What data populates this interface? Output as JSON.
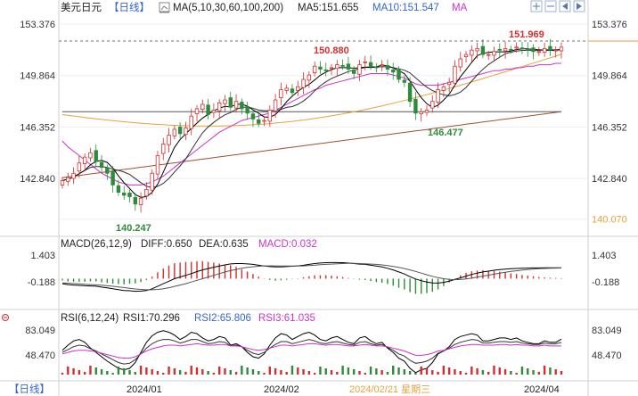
{
  "header": {
    "symbol": "美元日元",
    "period": "日线",
    "ma_label": "MA(5,10,30,60,100,200)",
    "ma5": "MA5:151.655",
    "ma10": "MA10:151.547",
    "ma_extra": "MA"
  },
  "macd_header": {
    "title": "MACD(26,12,9)",
    "diff": "DIFF:0.650",
    "dea": "DEA:0.635",
    "macd": "MACD:0.032"
  },
  "rsi_header": {
    "title": "RSI(6,12,24)",
    "rsi1": "RSI1:70.296",
    "rsi2": "RSI2:65.806",
    "rsi3": "RSI3:61.035"
  },
  "footer": {
    "period": "日线",
    "dates": [
      "2024/01",
      "2024/02",
      "2024/02/21 星期三",
      "2024/04"
    ]
  },
  "colors": {
    "up": "#d32f2f",
    "down": "#2e8b3a",
    "ma5": "#000000",
    "ma10": "#333333",
    "ma30": "#cc33cc",
    "ma60": "#e6a23c",
    "ma100": "#555555",
    "ma200": "#a0522d",
    "axis_orange": "#e6a23c"
  },
  "chart_data": [
    {
      "type": "candlestick",
      "title": "美元日元 日线",
      "y_axis_ticks": [
        "153.376",
        "149.864",
        "146.352",
        "142.840",
        "140.070"
      ],
      "ylim": [
        139.2,
        153.8
      ],
      "annotations": {
        "high": "151.969",
        "peak": "150.880",
        "trough": "146.477",
        "low": "140.247"
      },
      "close": [
        142.7,
        142.9,
        143.2,
        143.9,
        144.3,
        144.6,
        144.0,
        143.6,
        143.2,
        142.4,
        141.9,
        141.7,
        141.6,
        141.1,
        141.5,
        142.1,
        143.2,
        144.4,
        145.2,
        145.8,
        146.2,
        145.9,
        146.3,
        147.1,
        147.6,
        147.9,
        147.2,
        147.5,
        148.0,
        148.2,
        147.7,
        148.1,
        147.6,
        147.3,
        146.9,
        146.6,
        146.8,
        147.5,
        148.2,
        148.9,
        149.0,
        148.7,
        149.1,
        149.6,
        149.9,
        150.5,
        150.3,
        150.2,
        150.4,
        150.6,
        150.5,
        150.3,
        150.0,
        150.6,
        150.8,
        150.5,
        150.4,
        150.6,
        150.3,
        150.1,
        149.6,
        149.4,
        148.1,
        147.3,
        147.4,
        147.5,
        148.1,
        148.9,
        149.1,
        149.4,
        150.5,
        151.0,
        151.3,
        151.6,
        151.7,
        151.3,
        151.3,
        151.5,
        151.6,
        151.7,
        151.6,
        151.8,
        151.7,
        151.6,
        151.5,
        151.5,
        151.7,
        151.6,
        151.6,
        151.8
      ],
      "ma30": [
        145.4,
        145.0,
        144.7,
        144.4,
        144.1,
        143.8,
        143.5,
        143.2,
        143.0,
        142.8,
        142.6,
        142.5,
        142.4,
        142.4,
        142.4,
        142.5,
        142.6,
        142.8,
        143.0,
        143.3,
        143.6,
        143.9,
        144.2,
        144.5,
        144.8,
        145.1,
        145.4,
        145.7,
        146.0,
        146.2,
        146.4,
        146.6,
        146.8,
        146.9,
        147.0,
        147.1,
        147.2,
        147.3,
        147.5,
        147.7,
        147.9,
        148.1,
        148.3,
        148.5,
        148.7,
        148.9,
        149.0,
        149.2,
        149.3,
        149.4,
        149.5,
        149.6,
        149.7,
        149.8,
        149.9,
        150.0,
        150.0,
        150.0,
        150.0,
        149.9,
        149.8,
        149.7,
        149.5,
        149.3,
        149.2,
        149.2,
        149.2,
        149.2,
        149.3,
        149.4,
        149.5,
        149.6,
        149.7,
        149.8,
        149.9,
        150.0,
        150.1,
        150.2,
        150.2,
        150.3,
        150.3,
        150.4,
        150.4,
        150.5,
        150.5,
        150.6,
        150.6,
        150.6,
        150.7,
        150.7
      ]
    },
    {
      "type": "bar",
      "title": "MACD(26,12,9)",
      "y_axis_ticks": [
        "1.403",
        "-0.188"
      ],
      "series": [
        {
          "name": "DIFF",
          "values": [
            -0.3,
            -0.35,
            -0.38,
            -0.4,
            -0.42,
            -0.43,
            -0.45,
            -0.5,
            -0.55,
            -0.6,
            -0.65,
            -0.7,
            -0.72,
            -0.75,
            -0.74,
            -0.7,
            -0.6,
            -0.45,
            -0.3,
            -0.15,
            0.0,
            0.1,
            0.2,
            0.3,
            0.42,
            0.52,
            0.6,
            0.68,
            0.75,
            0.82,
            0.88,
            0.9,
            0.9,
            0.88,
            0.85,
            0.8,
            0.75,
            0.72,
            0.7,
            0.7,
            0.72,
            0.74,
            0.76,
            0.8,
            0.85,
            0.9,
            0.93,
            0.95,
            0.96,
            0.96,
            0.95,
            0.93,
            0.9,
            0.87,
            0.85,
            0.8,
            0.75,
            0.7,
            0.62,
            0.52,
            0.4,
            0.28,
            0.12,
            -0.02,
            -0.12,
            -0.2,
            -0.25,
            -0.26,
            -0.22,
            -0.15,
            -0.05,
            0.05,
            0.15,
            0.25,
            0.33,
            0.4,
            0.45,
            0.5,
            0.54,
            0.57,
            0.59,
            0.61,
            0.62,
            0.63,
            0.64,
            0.64,
            0.645,
            0.648,
            0.65,
            0.65
          ]
        },
        {
          "name": "DEA",
          "values": [
            -0.25,
            -0.27,
            -0.29,
            -0.31,
            -0.33,
            -0.35,
            -0.37,
            -0.39,
            -0.42,
            -0.45,
            -0.49,
            -0.53,
            -0.57,
            -0.61,
            -0.64,
            -0.66,
            -0.66,
            -0.64,
            -0.6,
            -0.54,
            -0.46,
            -0.38,
            -0.3,
            -0.2,
            -0.1,
            0.0,
            0.1,
            0.2,
            0.3,
            0.4,
            0.48,
            0.55,
            0.62,
            0.67,
            0.71,
            0.74,
            0.76,
            0.76,
            0.76,
            0.75,
            0.75,
            0.75,
            0.75,
            0.76,
            0.78,
            0.8,
            0.83,
            0.85,
            0.87,
            0.89,
            0.9,
            0.91,
            0.91,
            0.9,
            0.89,
            0.87,
            0.85,
            0.82,
            0.78,
            0.73,
            0.67,
            0.6,
            0.52,
            0.43,
            0.33,
            0.23,
            0.14,
            0.06,
            0.0,
            -0.04,
            -0.06,
            -0.05,
            -0.02,
            0.03,
            0.09,
            0.15,
            0.21,
            0.27,
            0.33,
            0.38,
            0.43,
            0.47,
            0.51,
            0.54,
            0.57,
            0.59,
            0.61,
            0.62,
            0.63,
            0.635
          ]
        },
        {
          "name": "MACD",
          "values": [
            -0.1,
            -0.16,
            -0.18,
            -0.18,
            -0.18,
            -0.16,
            -0.16,
            -0.22,
            -0.26,
            -0.3,
            -0.32,
            -0.34,
            -0.3,
            -0.28,
            -0.2,
            -0.08,
            0.12,
            0.38,
            0.6,
            0.78,
            0.92,
            0.96,
            1.0,
            1.0,
            1.04,
            1.04,
            1.0,
            0.96,
            0.9,
            0.84,
            0.8,
            0.7,
            0.56,
            0.42,
            0.28,
            0.12,
            -0.02,
            -0.08,
            -0.12,
            -0.1,
            -0.06,
            -0.02,
            0.02,
            0.08,
            0.14,
            0.2,
            0.2,
            0.2,
            0.18,
            0.14,
            0.1,
            0.04,
            -0.02,
            -0.06,
            -0.08,
            -0.14,
            -0.2,
            -0.24,
            -0.32,
            -0.42,
            -0.54,
            -0.64,
            -0.8,
            -0.9,
            -0.9,
            -0.86,
            -0.78,
            -0.64,
            -0.44,
            -0.22,
            0.02,
            0.2,
            0.34,
            0.44,
            0.48,
            0.5,
            0.48,
            0.46,
            0.42,
            0.38,
            0.32,
            0.28,
            0.22,
            0.18,
            0.14,
            0.1,
            0.07,
            0.056,
            0.04,
            0.032
          ]
        }
      ]
    },
    {
      "type": "line",
      "title": "RSI(6,12,24)",
      "y_axis_ticks": [
        "83.049",
        "48.470"
      ],
      "series": [
        {
          "name": "RSI1",
          "values": [
            55,
            62,
            68,
            70,
            66,
            58,
            52,
            46,
            40,
            35,
            30,
            28,
            30,
            38,
            52,
            66,
            75,
            80,
            82,
            80,
            76,
            70,
            74,
            80,
            78,
            72,
            68,
            70,
            74,
            72,
            62,
            64,
            60,
            52,
            46,
            44,
            50,
            62,
            72,
            78,
            76,
            70,
            74,
            78,
            80,
            76,
            70,
            68,
            72,
            74,
            70,
            66,
            64,
            72,
            74,
            68,
            64,
            66,
            58,
            52,
            44,
            40,
            30,
            24,
            28,
            30,
            38,
            50,
            54,
            60,
            70,
            74,
            76,
            78,
            76,
            68,
            68,
            70,
            72,
            72,
            70,
            72,
            68,
            66,
            64,
            64,
            68,
            66,
            66,
            70.3
          ]
        },
        {
          "name": "RSI2",
          "values": [
            52,
            56,
            60,
            62,
            61,
            57,
            54,
            50,
            46,
            42,
            38,
            36,
            37,
            42,
            50,
            58,
            64,
            68,
            70,
            70,
            68,
            65,
            67,
            70,
            70,
            67,
            64,
            65,
            67,
            66,
            61,
            62,
            60,
            55,
            51,
            49,
            52,
            58,
            63,
            67,
            67,
            64,
            66,
            68,
            70,
            68,
            65,
            64,
            66,
            67,
            65,
            63,
            62,
            66,
            67,
            64,
            62,
            63,
            59,
            55,
            50,
            47,
            41,
            37,
            38,
            40,
            44,
            51,
            54,
            58,
            63,
            66,
            68,
            70,
            69,
            65,
            65,
            66,
            67,
            67,
            66,
            67,
            65,
            64,
            63,
            63,
            65,
            64,
            64,
            65.8
          ]
        },
        {
          "name": "RSI3",
          "values": [
            50,
            52,
            54,
            55,
            55,
            54,
            53,
            51,
            49,
            47,
            45,
            44,
            44,
            46,
            50,
            54,
            57,
            59,
            61,
            62,
            62,
            61,
            62,
            63,
            64,
            63,
            62,
            62,
            63,
            63,
            61,
            61,
            60,
            58,
            56,
            55,
            56,
            58,
            60,
            62,
            62,
            61,
            62,
            63,
            64,
            64,
            63,
            62,
            63,
            63,
            62,
            61,
            61,
            62,
            63,
            62,
            61,
            61,
            60,
            58,
            56,
            54,
            51,
            48,
            48,
            49,
            51,
            54,
            55,
            57,
            59,
            61,
            62,
            63,
            63,
            62,
            62,
            62,
            63,
            63,
            62,
            63,
            62,
            62,
            61,
            61,
            62,
            61,
            61,
            61.0
          ]
        }
      ]
    }
  ]
}
